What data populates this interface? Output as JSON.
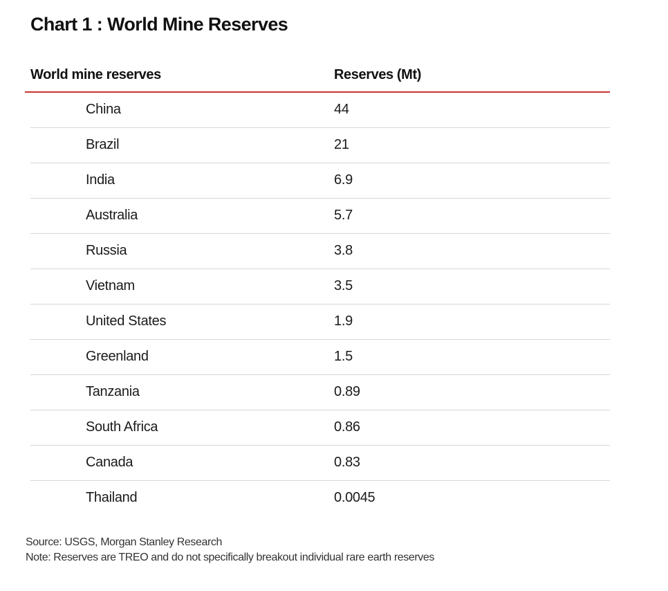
{
  "title": "Chart 1 : World Mine Reserves",
  "chart_data": {
    "type": "table",
    "title": "Chart 1 : World Mine Reserves",
    "columns": [
      "World mine reserves",
      "Reserves (Mt)"
    ],
    "rows": [
      {
        "country": "China",
        "value": "44"
      },
      {
        "country": "Brazil",
        "value": "21"
      },
      {
        "country": "India",
        "value": "6.9"
      },
      {
        "country": "Australia",
        "value": "5.7"
      },
      {
        "country": "Russia",
        "value": "3.8"
      },
      {
        "country": "Vietnam",
        "value": "3.5"
      },
      {
        "country": "United States",
        "value": "1.9"
      },
      {
        "country": "Greenland",
        "value": "1.5"
      },
      {
        "country": "Tanzania",
        "value": "0.89"
      },
      {
        "country": "South Africa",
        "value": "0.86"
      },
      {
        "country": "Canada",
        "value": "0.83"
      },
      {
        "country": "Thailand",
        "value": "0.0045"
      }
    ],
    "header_rule_color": "#c8332d"
  },
  "footer": {
    "source": "Source: USGS, Morgan Stanley Research",
    "note": "Note: Reserves are TREO and do not specifically breakout individual rare earth reserves"
  }
}
